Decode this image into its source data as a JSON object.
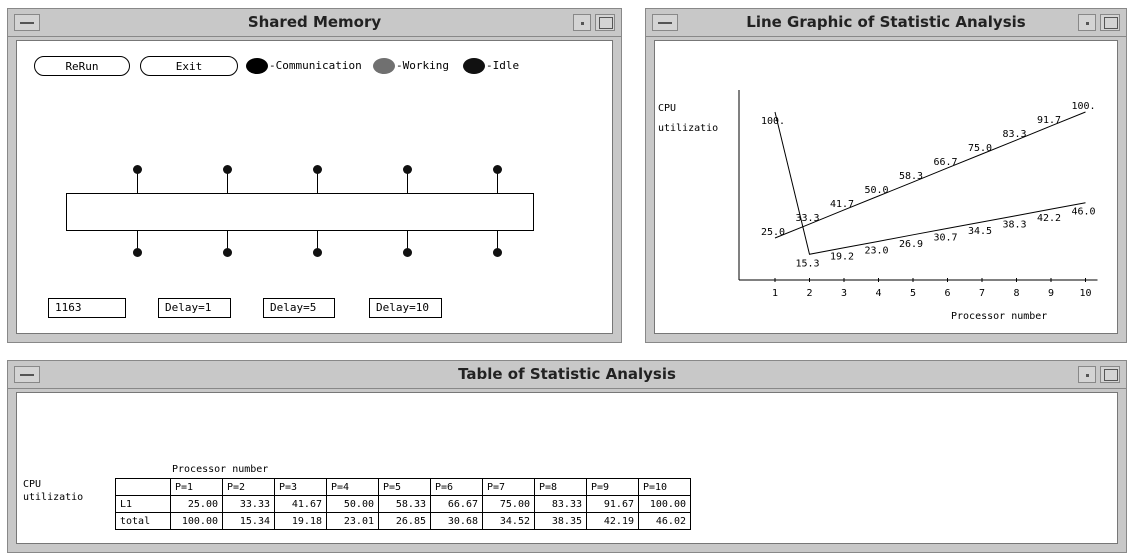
{
  "shared_memory": {
    "title": "Shared Memory",
    "buttons": {
      "rerun": "ReRun",
      "exit": "Exit"
    },
    "legend": [
      {
        "label": "-Communication",
        "color": "#000000"
      },
      {
        "label": "-Working",
        "color": "#707070"
      },
      {
        "label": "-Idle",
        "color": "#111111"
      }
    ],
    "counter": "1163",
    "delays": [
      "Delay=1",
      "Delay=5",
      "Delay=10"
    ]
  },
  "line_graphic": {
    "title": "Line Graphic of Statistic Analysis",
    "ylabel_line1": "CPU",
    "ylabel_line2": "utilizatio",
    "xlabel": "Processor number"
  },
  "chart_data": {
    "type": "line",
    "title": "Line Graphic of Statistic Analysis",
    "xlabel": "Processor number",
    "ylabel": "CPU utilizatio",
    "x": [
      1,
      2,
      3,
      4,
      5,
      6,
      7,
      8,
      9,
      10
    ],
    "x_ticks": [
      "1",
      "2",
      "3",
      "4",
      "5",
      "6",
      "7",
      "8",
      "9",
      "10"
    ],
    "ylim": [
      0,
      100
    ],
    "grid": false,
    "series": [
      {
        "values": [
          25.0,
          33.3,
          41.7,
          50.0,
          58.3,
          66.7,
          75.0,
          83.3,
          91.7,
          100.0
        ],
        "labels": [
          "25.0",
          "33.3",
          "41.7",
          "50.0",
          "58.3",
          "66.7",
          "75.0",
          "83.3",
          "91.7",
          "100."
        ]
      },
      {
        "values": [
          100.0,
          15.3,
          19.2,
          23.0,
          26.9,
          30.7,
          34.5,
          38.3,
          42.2,
          46.0
        ],
        "labels": [
          "100.",
          "15.3",
          "19.2",
          "23.0",
          "26.9",
          "30.7",
          "34.5",
          "38.3",
          "42.2",
          "46.0"
        ]
      }
    ]
  },
  "table": {
    "title": "Table of Statistic Analysis",
    "caption": "Processor number",
    "ylabel_line1": "CPU",
    "ylabel_line2": "utilizatio",
    "headers": [
      "P=1",
      "P=2",
      "P=3",
      "P=4",
      "P=5",
      "P=6",
      "P=7",
      "P=8",
      "P=9",
      "P=10"
    ],
    "rows": [
      {
        "label": "L1",
        "values": [
          "25.00",
          "33.33",
          "41.67",
          "50.00",
          "58.33",
          "66.67",
          "75.00",
          "83.33",
          "91.67",
          "100.00"
        ]
      },
      {
        "label": "total",
        "values": [
          "100.00",
          "15.34",
          "19.18",
          "23.01",
          "26.85",
          "30.68",
          "34.52",
          "38.35",
          "42.19",
          "46.02"
        ]
      }
    ]
  }
}
